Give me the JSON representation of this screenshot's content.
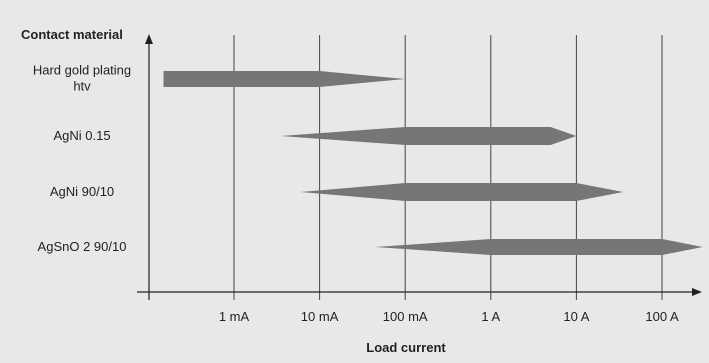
{
  "chart_data": {
    "type": "range-bar",
    "title": "",
    "ylabel": "Contact material",
    "xlabel": "Load current",
    "x_scale": "log",
    "x_ticks": [
      "1 mA",
      "10 mA",
      "100 mA",
      "1 A",
      "10 A",
      "100 A"
    ],
    "x_tick_values_A": [
      0.001,
      0.01,
      0.1,
      1,
      10,
      100
    ],
    "grid": "vertical",
    "series": [
      {
        "label": "Hard gold plating\nhtv",
        "label_lines": [
          "Hard gold plating",
          "htv"
        ],
        "start_A": 0.00015,
        "full_from_A": 0.00015,
        "full_to_A": 0.01,
        "end_A": 0.1
      },
      {
        "label": "AgNi 0.15",
        "label_lines": [
          "AgNi 0.15"
        ],
        "start_A": 0.0035,
        "full_from_A": 0.1,
        "full_to_A": 5,
        "end_A": 10
      },
      {
        "label": "AgNi 90/10",
        "label_lines": [
          "AgNi 90/10"
        ],
        "start_A": 0.006,
        "full_from_A": 0.1,
        "full_to_A": 10,
        "end_A": 35
      },
      {
        "label": "AgSnO 2 90/10",
        "label_lines": [
          "AgSnO 2 90/10"
        ],
        "start_A": 0.045,
        "full_from_A": 1,
        "full_to_A": 100,
        "end_A": 300
      }
    ],
    "colors": {
      "background": "#e8e8e8",
      "bar": "#767676",
      "axis": "#222222",
      "grid": "#444444"
    }
  }
}
